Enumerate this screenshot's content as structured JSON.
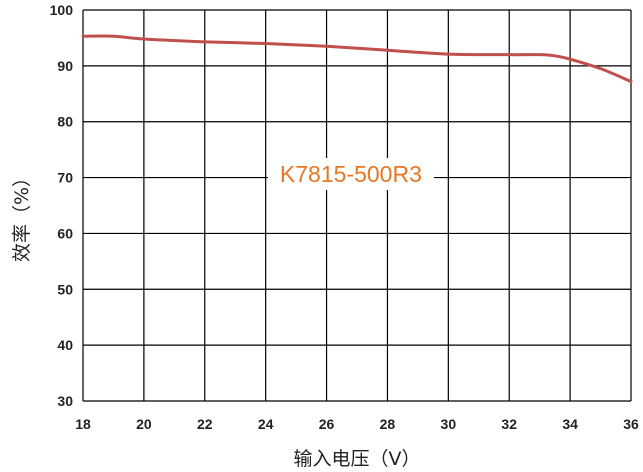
{
  "chart_data": {
    "type": "line",
    "xlabel": "输入电压（V）",
    "ylabel": "效率（%）",
    "xlim": [
      18,
      36
    ],
    "ylim": [
      30,
      100
    ],
    "x_ticks": [
      "18",
      "20",
      "22",
      "24",
      "26",
      "28",
      "30",
      "32",
      "34",
      "36"
    ],
    "y_ticks": [
      "30",
      "40",
      "50",
      "60",
      "70",
      "80",
      "90",
      "100"
    ],
    "grid": true,
    "annotation": "K7815-500R3",
    "annotation_color": "#e87722",
    "line_color": "#c0504d",
    "series": [
      {
        "x": [
          18,
          19,
          20,
          22,
          24,
          26,
          28,
          30,
          32,
          33,
          33.5,
          34,
          35,
          36
        ],
        "y": [
          95.3,
          95.3,
          94.8,
          94.3,
          94.0,
          93.5,
          92.8,
          92.1,
          92.0,
          92.0,
          91.8,
          91.2,
          89.5,
          87.2
        ]
      }
    ]
  }
}
